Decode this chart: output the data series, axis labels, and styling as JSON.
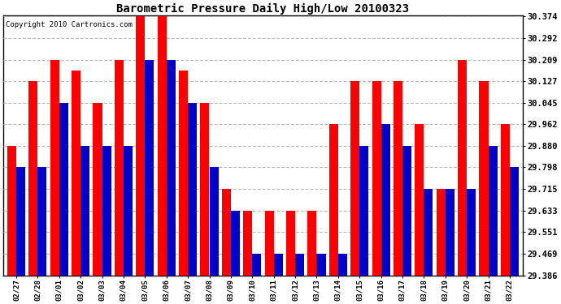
{
  "title": "Barometric Pressure Daily High/Low 20100323",
  "copyright": "Copyright 2010 Cartronics.com",
  "dates": [
    "02/27",
    "02/28",
    "03/01",
    "03/02",
    "03/03",
    "03/04",
    "03/05",
    "03/06",
    "03/07",
    "03/08",
    "03/09",
    "03/10",
    "03/11",
    "03/12",
    "03/13",
    "03/14",
    "03/15",
    "03/16",
    "03/17",
    "03/18",
    "03/19",
    "03/20",
    "03/21",
    "03/22"
  ],
  "highs": [
    29.88,
    30.127,
    30.209,
    30.168,
    30.045,
    30.209,
    30.374,
    30.374,
    30.168,
    30.045,
    29.715,
    29.633,
    29.633,
    29.633,
    29.633,
    29.962,
    30.127,
    30.127,
    30.127,
    29.962,
    29.715,
    30.209,
    30.127,
    29.962
  ],
  "lows": [
    29.798,
    29.798,
    30.045,
    29.88,
    29.88,
    29.88,
    30.209,
    30.209,
    30.045,
    29.798,
    29.633,
    29.469,
    29.469,
    29.469,
    29.469,
    29.469,
    29.88,
    29.962,
    29.88,
    29.715,
    29.715,
    29.715,
    29.88,
    29.798
  ],
  "high_color": "#FF0000",
  "low_color": "#0000CC",
  "bg_color": "#FFFFFF",
  "grid_color": "#BBBBBB",
  "ymin": 29.386,
  "ymax": 30.374,
  "yticks": [
    29.386,
    29.469,
    29.551,
    29.633,
    29.715,
    29.798,
    29.88,
    29.962,
    30.045,
    30.127,
    30.209,
    30.292,
    30.374
  ]
}
